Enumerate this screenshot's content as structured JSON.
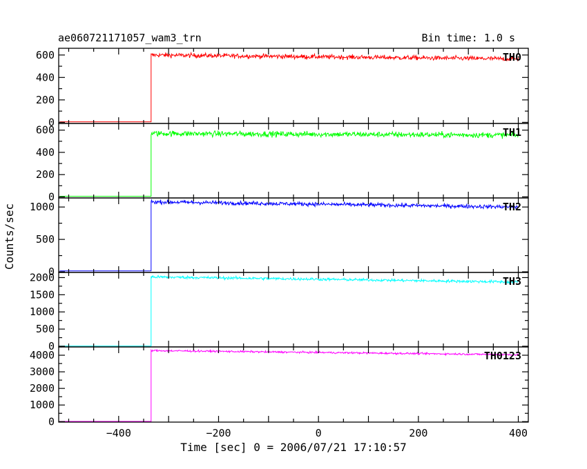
{
  "header": {
    "title": "ae060721171057_wam3_trn",
    "bin_time": "Bin time: 1.0 s"
  },
  "chart_data": {
    "type": "line",
    "xlabel": "Time [sec] 0 = 2006/07/21 17:10:57",
    "ylabel": "Counts/sec",
    "xlim": [
      -520,
      420
    ],
    "x_ticks": [
      -400,
      -200,
      0,
      200,
      400
    ],
    "x_tick_labels": [
      "−400",
      "−200",
      "0",
      "200",
      "400"
    ],
    "onset_time": -335,
    "panels": [
      {
        "name": "TH0",
        "color": "#ff0000",
        "ylim": [
          -10,
          660
        ],
        "y_ticks": [
          0,
          200,
          400,
          600
        ],
        "y_tick_labels": [
          "0",
          "200",
          "400",
          "600"
        ],
        "pre_level": 5,
        "post_start": 600,
        "post_end": 565,
        "noise": 20
      },
      {
        "name": "TH1",
        "color": "#00ff00",
        "ylim": [
          -10,
          660
        ],
        "y_ticks": [
          0,
          200,
          400,
          600
        ],
        "y_tick_labels": [
          "0",
          "200",
          "400",
          "600"
        ],
        "pre_level": 5,
        "post_start": 570,
        "post_end": 555,
        "noise": 25
      },
      {
        "name": "TH2",
        "color": "#0000ff",
        "ylim": [
          -10,
          1140
        ],
        "y_ticks": [
          0,
          500,
          1000
        ],
        "y_tick_labels": [
          "0",
          "500",
          "1000"
        ],
        "pre_level": 15,
        "post_start": 1080,
        "post_end": 1000,
        "noise": 30
      },
      {
        "name": "TH3",
        "color": "#00ffff",
        "ylim": [
          -20,
          2150
        ],
        "y_ticks": [
          0,
          500,
          1000,
          1500,
          2000
        ],
        "y_tick_labels": [
          "0",
          "500",
          "1000",
          "1500",
          "2000"
        ],
        "pre_level": 5,
        "post_start": 2020,
        "post_end": 1870,
        "noise": 40
      },
      {
        "name": "TH0123",
        "color": "#ff00ff",
        "ylim": [
          -30,
          4500
        ],
        "y_ticks": [
          0,
          1000,
          2000,
          3000,
          4000
        ],
        "y_tick_labels": [
          "0",
          "1000",
          "2000",
          "3000",
          "4000"
        ],
        "pre_level": 10,
        "post_start": 4280,
        "post_end": 4030,
        "noise": 55
      }
    ]
  }
}
